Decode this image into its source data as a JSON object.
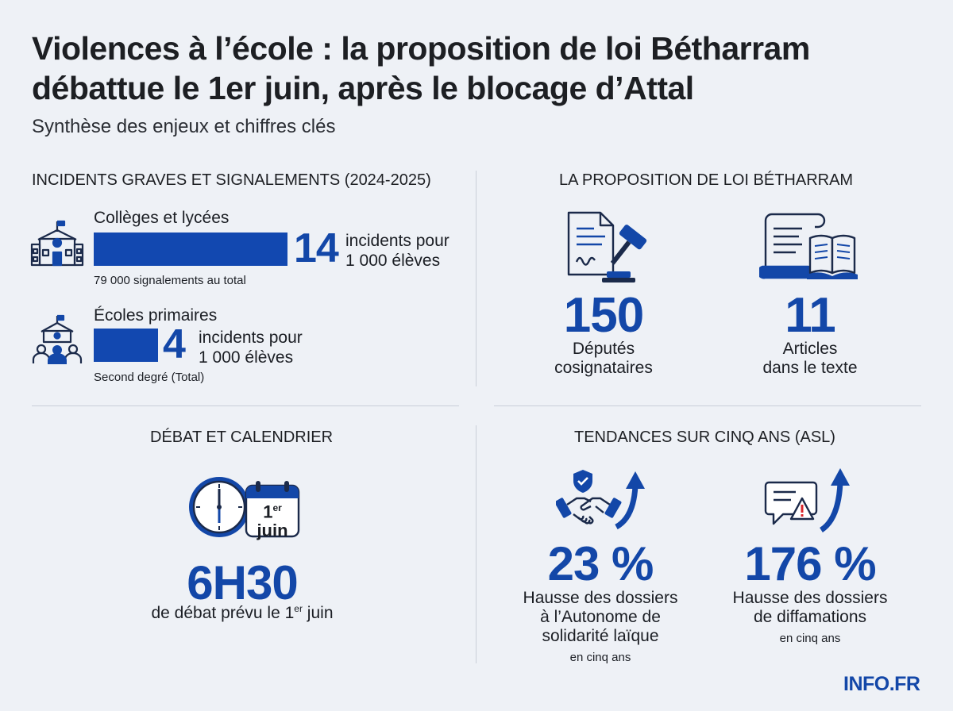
{
  "header": {
    "title_line1": "Violences à l’école : la proposition de loi Bétharram",
    "title_line2": "débattue le 1er juin, après le blocage d’Attal",
    "subtitle": "Synthèse des enjeux et chiffres clés"
  },
  "incidents": {
    "heading": "INCIDENTS GRAVES ET SIGNALEMENTS (2024-2025)",
    "colleges": {
      "label": "Collèges et lycées",
      "value": "14",
      "unit_line1": "incidents pour",
      "unit_line2": "1 000 élèves",
      "note": "79 000 signalements au total",
      "bar_fraction": 1.0
    },
    "primaires": {
      "label": "Écoles primaires",
      "value": "4",
      "unit_line1": "incidents pour",
      "unit_line2": "1 000 élèves",
      "note": "Second degré (Total)",
      "bar_fraction": 0.33
    }
  },
  "loi": {
    "heading": "LA PROPOSITION DE LOI BÉTHARRAM",
    "deputes": {
      "value": "150",
      "line1": "Députés",
      "line2": "cosignataires"
    },
    "articles": {
      "value": "11",
      "line1": "Articles",
      "line2": "dans le texte"
    }
  },
  "debat": {
    "heading": "DÉBAT ET CALENDRIER",
    "calendar_day": "1",
    "calendar_sup": "er",
    "calendar_month": "juin",
    "value": "6H30",
    "caption_pre": "de débat prévu le 1",
    "caption_sup": "er",
    "caption_post": " juin"
  },
  "tendances": {
    "heading": "TENDANCES SUR CINQ ANS (ASL)",
    "asl": {
      "value": "23 %",
      "line1": "Hausse des dossiers",
      "line2": "à l’Autonome de",
      "line3": "solidarité laïque",
      "note": "en cinq ans"
    },
    "diffamation": {
      "value": "176 %",
      "line1": "Hausse des dossiers",
      "line2": "de diffamations",
      "note": "en cinq ans"
    }
  },
  "brand": "INFO.FR",
  "colors": {
    "accent": "#1347a8",
    "background": "#eef1f6",
    "divider": "#c9ced8"
  }
}
